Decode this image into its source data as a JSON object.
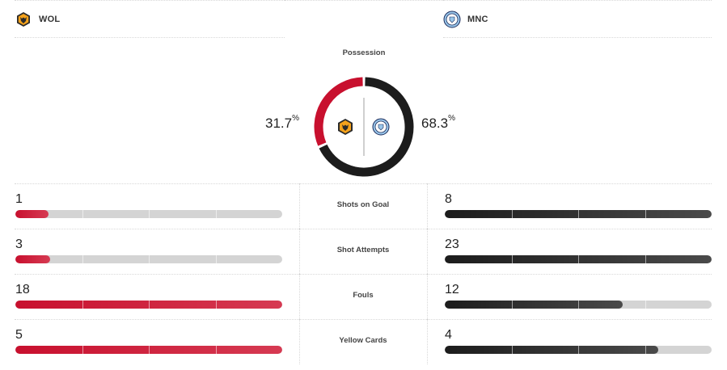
{
  "teams": {
    "home": {
      "abbr": "WOL",
      "color": "#c8102e",
      "crest_icon": "wolves-crest-icon"
    },
    "away": {
      "abbr": "MNC",
      "color": "#1c1c1c",
      "crest_icon": "man-city-crest-icon"
    }
  },
  "possession": {
    "title": "Possession",
    "home_pct": "31.7",
    "away_pct": "68.3",
    "pct_symbol": "%",
    "home_value": 31.7,
    "away_value": 68.3
  },
  "stats": [
    {
      "label": "Shots on Goal",
      "home": "1",
      "away": "8",
      "home_frac": 0.125,
      "away_frac": 1.0
    },
    {
      "label": "Shot Attempts",
      "home": "3",
      "away": "23",
      "home_frac": 0.13,
      "away_frac": 1.0
    },
    {
      "label": "Fouls",
      "home": "18",
      "away": "12",
      "home_frac": 1.0,
      "away_frac": 0.667
    },
    {
      "label": "Yellow Cards",
      "home": "5",
      "away": "4",
      "home_frac": 1.0,
      "away_frac": 0.8
    }
  ]
}
